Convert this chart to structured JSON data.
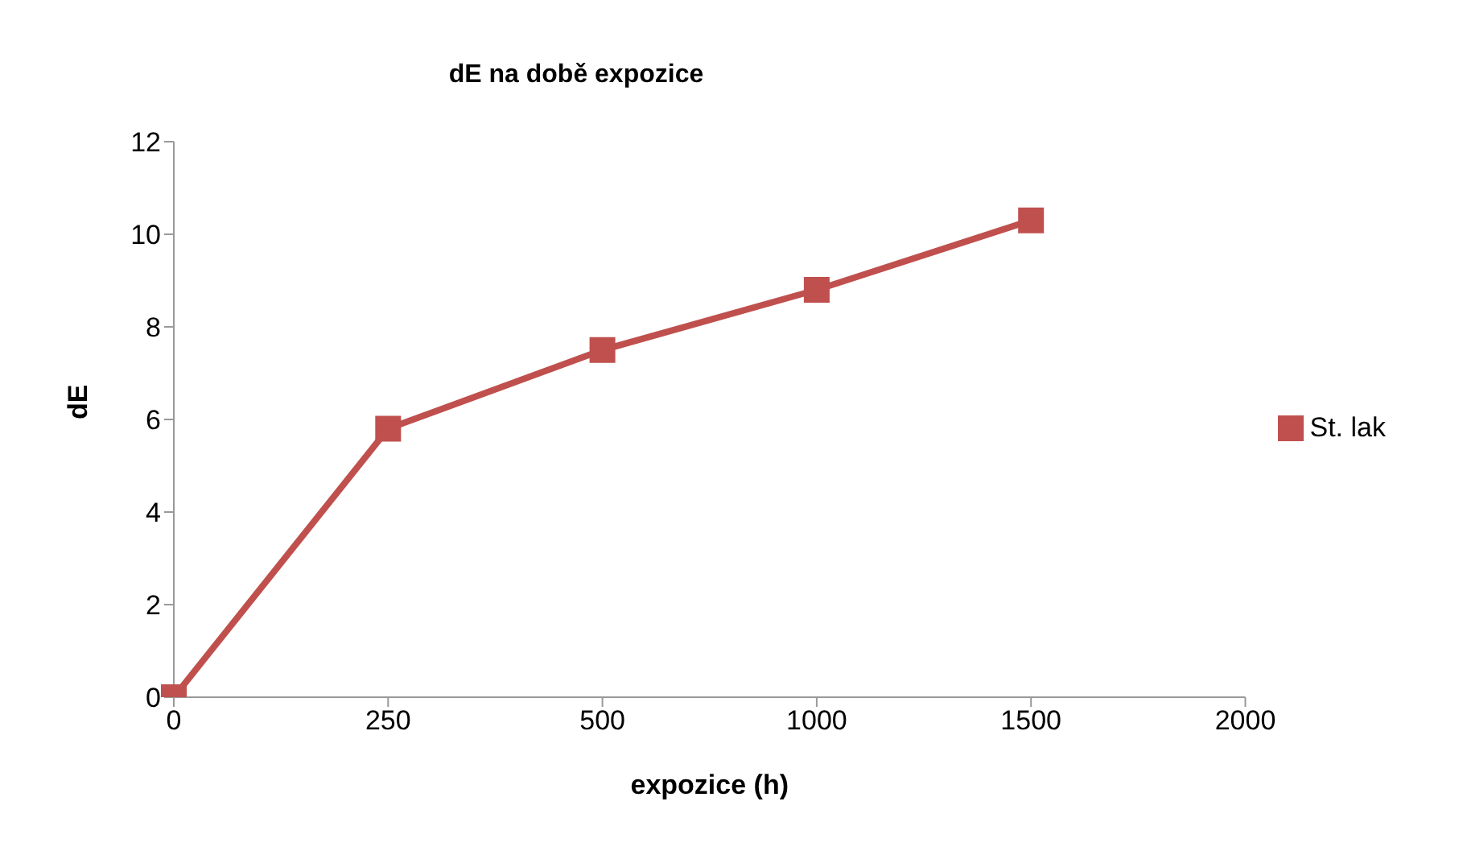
{
  "chart_data": {
    "type": "line",
    "title": "dE na době expozice",
    "xlabel": "expozice (h)",
    "ylabel": "dE",
    "categories": [
      "0",
      "250",
      "500",
      "1000",
      "1500",
      "2000"
    ],
    "series": [
      {
        "name": "St. lak",
        "color": "#c0504d",
        "values": [
          0,
          5.8,
          7.5,
          8.8,
          10.3,
          null
        ]
      }
    ],
    "ylim": [
      0,
      12
    ],
    "yticks": [
      0,
      2,
      4,
      6,
      8,
      10,
      12
    ],
    "grid": false,
    "legend": "right",
    "marker": "square",
    "line_style": "solid"
  }
}
